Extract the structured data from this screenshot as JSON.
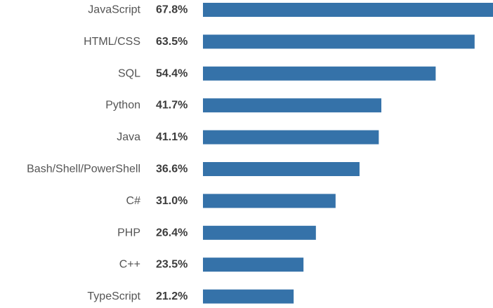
{
  "chart_data": {
    "type": "bar",
    "orientation": "horizontal",
    "title": "",
    "xlabel": "",
    "ylabel": "",
    "categories": [
      "JavaScript",
      "HTML/CSS",
      "SQL",
      "Python",
      "Java",
      "Bash/Shell/PowerShell",
      "C#",
      "PHP",
      "C++",
      "TypeScript"
    ],
    "values": [
      67.8,
      63.5,
      54.4,
      41.7,
      41.1,
      36.6,
      31.0,
      26.4,
      23.5,
      21.2
    ],
    "value_labels": [
      "67.8%",
      "63.5%",
      "54.4%",
      "41.7%",
      "41.1%",
      "36.6%",
      "31.0%",
      "26.4%",
      "23.5%",
      "21.2%"
    ],
    "xlim": [
      0,
      67.8
    ],
    "grid": false,
    "bar_color": "#3572a9"
  }
}
